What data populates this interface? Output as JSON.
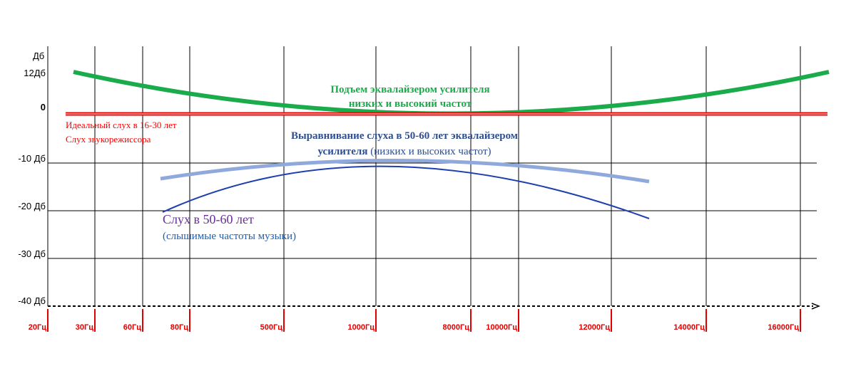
{
  "y_axis": {
    "title": "Дб",
    "labels": [
      "12Дб",
      "0",
      "-10 Дб",
      "-20 Дб",
      "-30 Дб",
      "-40 Дб"
    ]
  },
  "x_axis": {
    "labels": [
      "20Гц",
      "30Гц",
      "60Гц",
      "80Гц",
      "500Гц",
      "1000Гц",
      "8000Гц",
      "10000Гц",
      "12000Гц",
      "14000Гц",
      "16000Гц"
    ]
  },
  "annotations": {
    "equalizer_boost": [
      "Подъем эквалайзером усилителя",
      "низких и высокий частот"
    ],
    "ideal_hearing": [
      "Идеальный слух в 16-30 лет",
      "Слух звукорежиссора"
    ],
    "hearing_correction": {
      "line1": "Выравнивание слуха в 50-60 лет эквалайзером",
      "line2_bold": "усилителя",
      "line2_normal": " (низких и высоких частот)"
    },
    "hearing_50_60": [
      "Слух в 50-60 лет",
      "(слышимые частоты музыки)"
    ]
  }
}
